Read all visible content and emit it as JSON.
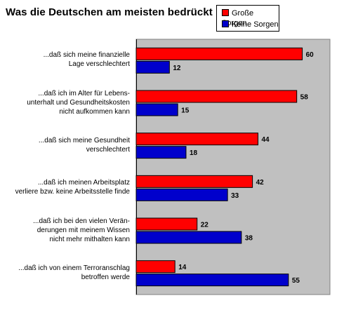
{
  "colors": {
    "grosse": "#ff0000",
    "keine": "#0000cc",
    "plot_bg": "#c0c0c0"
  },
  "chart_data": {
    "type": "bar",
    "orientation": "horizontal",
    "title": "Was die Deutschen am meisten bedrückt",
    "categories": [
      "...daß sich meine finanzielle Lage verschlechtert",
      "...daß ich im Alter für Lebensunterhalt und Gesundheitskosten nicht aufkommen kann",
      "...daß sich meine Gesundheit verschlechtert",
      "...daß ich meinen Arbeitsplatz verliere bzw. keine Arbeitsstelle finde",
      "...daß ich bei den vielen Veränderungen mit meinem Wissen nicht mehr mithalten kann",
      "...daß ich von einem Terroranschlag betroffen werde"
    ],
    "category_lines": [
      [
        "...daß sich meine finanzielle",
        "Lage verschlechtert"
      ],
      [
        "...daß ich im Alter für Lebens-",
        "unterhalt und Gesundheitskosten",
        "nicht aufkommen kann"
      ],
      [
        "...daß sich meine Gesundheit",
        "verschlechtert"
      ],
      [
        "...daß ich meinen Arbeitsplatz",
        "verliere bzw. keine Arbeitsstelle finde"
      ],
      [
        "...daß ich bei den vielen Verän-",
        "derungen mit meinem Wissen",
        "nicht mehr mithalten kann"
      ],
      [
        "...daß ich von einem Terroranschlag",
        "betroffen werde"
      ]
    ],
    "series": [
      {
        "name": "Große Sorgen",
        "values": [
          60,
          58,
          44,
          42,
          22,
          14
        ]
      },
      {
        "name": "Keine Sorgen",
        "values": [
          12,
          15,
          18,
          33,
          38,
          55
        ]
      }
    ],
    "xlim": [
      0,
      70
    ],
    "legend": "top-right",
    "grid": false
  }
}
